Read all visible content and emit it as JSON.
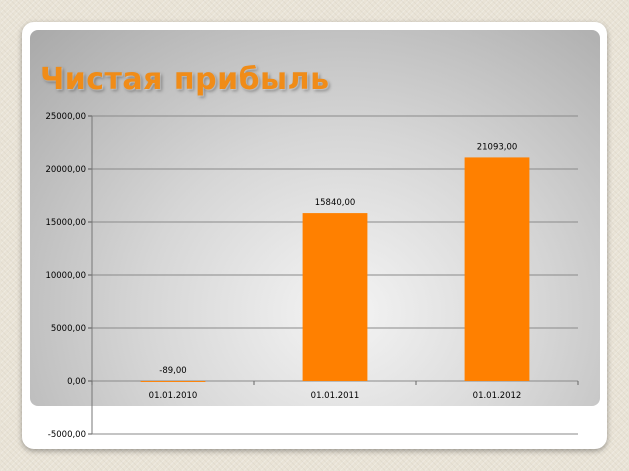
{
  "chart_data": {
    "type": "bar",
    "title": "Чистая прибыль",
    "categories": [
      "01.01.2010",
      "01.01.2011",
      "01.01.2012"
    ],
    "values": [
      -89,
      15840,
      21093
    ],
    "value_labels": [
      "-89,00",
      "15840,00",
      "21093,00"
    ],
    "ylim": [
      -5000,
      25000
    ],
    "yticks": [
      -5000,
      0,
      5000,
      10000,
      15000,
      20000,
      25000
    ],
    "ytick_labels": [
      "-5000,00",
      "0,00",
      "5000,00",
      "10000,00",
      "15000,00",
      "20000,00",
      "25000,00"
    ],
    "grid": true,
    "legend": "none"
  },
  "colors": {
    "bar": "#ff8000",
    "title": "#f08c18",
    "gridline": "#8a8a8a"
  }
}
